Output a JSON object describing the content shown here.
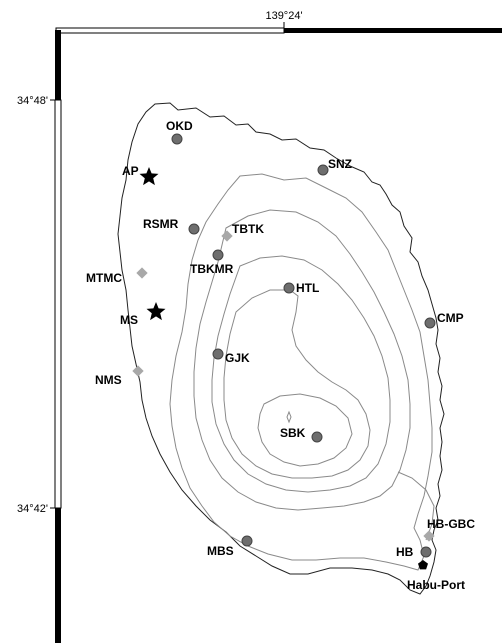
{
  "map": {
    "top_axis_label": "139°24'",
    "left_axis_labels": [
      "34°48'",
      "34°42'"
    ],
    "colors": {
      "coastline": "#222222",
      "contour": "#8a8a8a",
      "circle_station": "#6e6e6e",
      "diamond_station": "#a8a8a8",
      "star_station": "#000000",
      "port": "#000000"
    },
    "stations": [
      {
        "name": "OKD",
        "symbol": "circle"
      },
      {
        "name": "AP",
        "symbol": "star"
      },
      {
        "name": "SNZ",
        "symbol": "circle"
      },
      {
        "name": "RSMR",
        "symbol": "circle"
      },
      {
        "name": "TBTK",
        "symbol": "diamond"
      },
      {
        "name": "MTMC",
        "symbol": "diamond"
      },
      {
        "name": "TBKMR",
        "symbol": "circle"
      },
      {
        "name": "HTL",
        "symbol": "circle"
      },
      {
        "name": "MS",
        "symbol": "star"
      },
      {
        "name": "CMP",
        "symbol": "circle"
      },
      {
        "name": "GJK",
        "symbol": "circle"
      },
      {
        "name": "NMS",
        "symbol": "diamond"
      },
      {
        "name": "SBK",
        "symbol": "circle"
      },
      {
        "name": "HB-GBC",
        "symbol": "diamond"
      },
      {
        "name": "MBS",
        "symbol": "circle"
      },
      {
        "name": "HB",
        "symbol": "circle"
      },
      {
        "name": "Habu-Port",
        "symbol": "pentagon"
      }
    ]
  }
}
